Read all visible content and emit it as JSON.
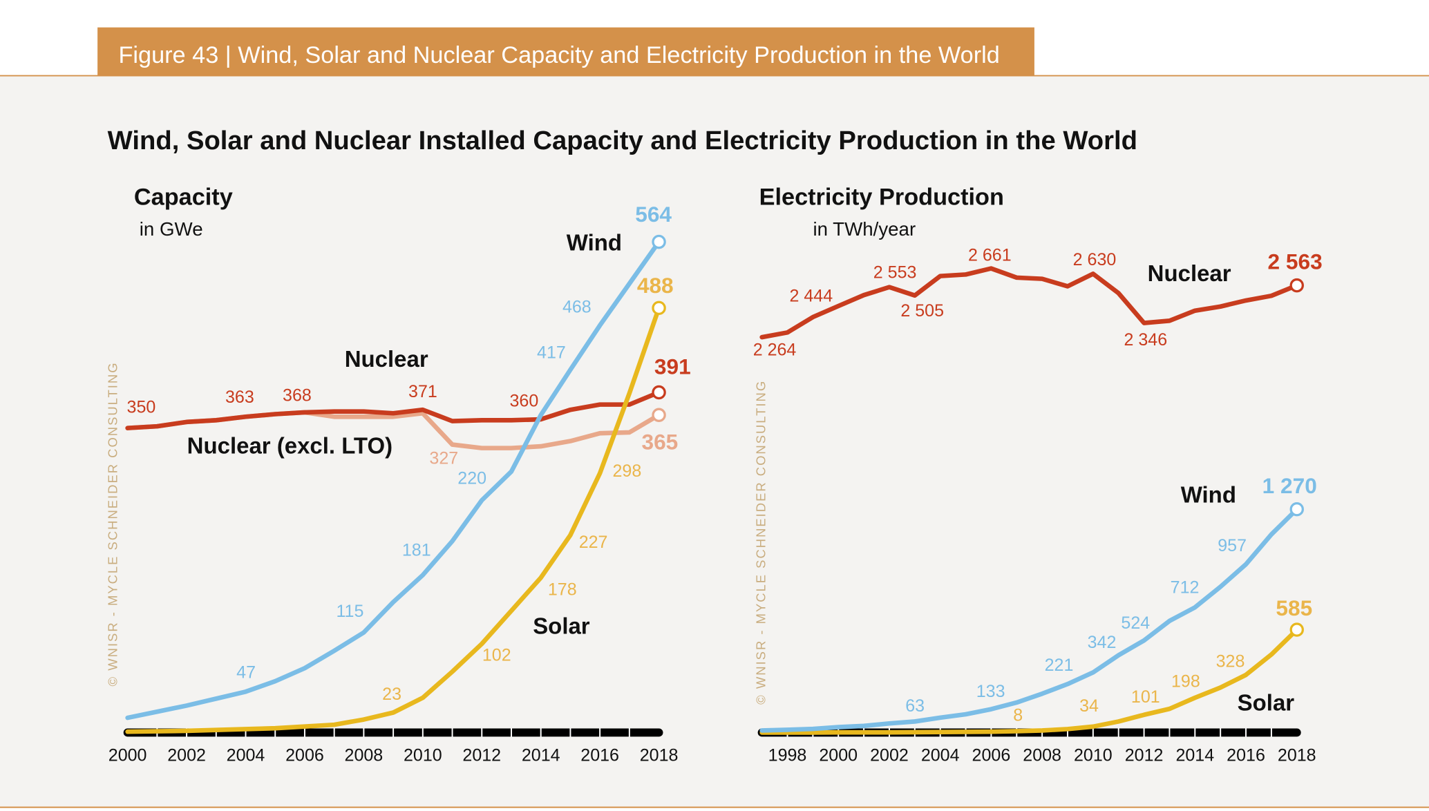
{
  "header": {
    "figure_label": "Figure 43 | Wind, Solar and Nuclear Capacity and Electricity Production in the World",
    "title": "Wind, Solar and Nuclear Installed Capacity and Electricity Production in the World",
    "watermark": "© WNISR - MYCLE SCHNEIDER CONSULTING"
  },
  "colors": {
    "header_band": "#d4914a",
    "background": "#f4f3f1",
    "wind": "#7bbde6",
    "solar": "#e8b81e",
    "solar_label": "#eab54a",
    "nuclear": "#c83c1e",
    "nuclear_excl_lto": "#e8a88a",
    "watermark": "#c9ad7f"
  },
  "chart_data": [
    {
      "type": "line",
      "title": "Capacity",
      "ylabel": "in GWe",
      "x": [
        2000,
        2001,
        2002,
        2003,
        2004,
        2005,
        2006,
        2007,
        2008,
        2009,
        2010,
        2011,
        2012,
        2013,
        2014,
        2015,
        2016,
        2017,
        2018
      ],
      "xticks": [
        "2000",
        "2002",
        "2004",
        "2006",
        "2008",
        "2010",
        "2012",
        "2014",
        "2016",
        "2018"
      ],
      "series": [
        {
          "key": "nuclear",
          "name": "Nuclear",
          "values": [
            350,
            352,
            357,
            359,
            363,
            366,
            368,
            369,
            369,
            367,
            371,
            358,
            359,
            359,
            360,
            371,
            377,
            377,
            391
          ],
          "labels": [
            {
              "year": 2000,
              "text": "350"
            },
            {
              "year": 2004,
              "text": "363"
            },
            {
              "year": 2006,
              "text": "368"
            },
            {
              "year": 2010,
              "text": "371"
            },
            {
              "year": 2014,
              "text": "360"
            },
            {
              "year": 2018,
              "text": "391"
            }
          ]
        },
        {
          "key": "nuclear_excl_lto",
          "name": "Nuclear (excl. LTO)",
          "values": [
            350,
            352,
            357,
            359,
            363,
            366,
            368,
            363,
            363,
            363,
            367,
            331,
            327,
            327,
            329,
            335,
            344,
            345,
            365
          ],
          "labels": [
            {
              "year": 2012,
              "text": "327"
            },
            {
              "year": 2018,
              "text": "365"
            }
          ]
        },
        {
          "key": "wind",
          "name": "Wind",
          "values": [
            17,
            24,
            31,
            39,
            47,
            59,
            74,
            94,
            115,
            150,
            181,
            220,
            267,
            300,
            365,
            417,
            468,
            516,
            564
          ],
          "labels": [
            {
              "year": 2004,
              "text": "47"
            },
            {
              "year": 2008,
              "text": "115"
            },
            {
              "year": 2010,
              "text": "181"
            },
            {
              "year": 2011,
              "text": "220"
            },
            {
              "year": 2015,
              "text": "417"
            },
            {
              "year": 2016,
              "text": "468"
            },
            {
              "year": 2018,
              "text": "564"
            }
          ]
        },
        {
          "key": "solar",
          "name": "Solar",
          "values": [
            1,
            1.5,
            2,
            3,
            4,
            5,
            7,
            9,
            15,
            23,
            40,
            70,
            102,
            140,
            178,
            227,
            298,
            390,
            488
          ],
          "labels": [
            {
              "year": 2009,
              "text": "23"
            },
            {
              "year": 2012,
              "text": "102"
            },
            {
              "year": 2014,
              "text": "178"
            },
            {
              "year": 2015,
              "text": "227"
            },
            {
              "year": 2016,
              "text": "298"
            },
            {
              "year": 2018,
              "text": "488"
            }
          ]
        }
      ]
    },
    {
      "type": "line",
      "title": "Electricity Production",
      "ylabel": "in TWh/year",
      "x": [
        1997,
        1998,
        1999,
        2000,
        2001,
        2002,
        2003,
        2004,
        2005,
        2006,
        2007,
        2008,
        2009,
        2010,
        2011,
        2012,
        2013,
        2014,
        2015,
        2016,
        2017,
        2018
      ],
      "xticks": [
        "1998",
        "2000",
        "2002",
        "2004",
        "2006",
        "2008",
        "2010",
        "2012",
        "2014",
        "2016",
        "2018"
      ],
      "series": [
        {
          "key": "nuclear",
          "name": "Nuclear",
          "values": [
            2264,
            2291,
            2380,
            2444,
            2507,
            2553,
            2505,
            2617,
            2626,
            2661,
            2608,
            2601,
            2558,
            2630,
            2518,
            2346,
            2359,
            2417,
            2441,
            2476,
            2503,
            2563
          ],
          "labels": [
            {
              "year": 1997,
              "text": "2 264"
            },
            {
              "year": 2000,
              "text": "2 444"
            },
            {
              "year": 2002,
              "text": "2 553"
            },
            {
              "year": 2003,
              "text": "2 505"
            },
            {
              "year": 2006,
              "text": "2 661"
            },
            {
              "year": 2010,
              "text": "2 630"
            },
            {
              "year": 2012,
              "text": "2 346"
            },
            {
              "year": 2018,
              "text": "2 563"
            }
          ]
        },
        {
          "key": "wind",
          "name": "Wind",
          "values": [
            12,
            16,
            21,
            31,
            38,
            52,
            63,
            85,
            104,
            133,
            171,
            221,
            276,
            342,
            440,
            524,
            635,
            712,
            829,
            957,
            1127,
            1270
          ],
          "labels": [
            {
              "year": 2003,
              "text": "63"
            },
            {
              "year": 2006,
              "text": "133"
            },
            {
              "year": 2008,
              "text": "221"
            },
            {
              "year": 2010,
              "text": "342"
            },
            {
              "year": 2012,
              "text": "524"
            },
            {
              "year": 2014,
              "text": "712"
            },
            {
              "year": 2016,
              "text": "957"
            },
            {
              "year": 2018,
              "text": "1 270"
            }
          ]
        },
        {
          "key": "solar",
          "name": "Solar",
          "values": [
            0,
            0,
            0,
            1,
            1,
            1,
            2,
            3,
            4,
            5,
            8,
            12,
            20,
            34,
            63,
            101,
            135,
            198,
            256,
            328,
            444,
            585
          ],
          "labels": [
            {
              "year": 2007,
              "text": "8"
            },
            {
              "year": 2010,
              "text": "34"
            },
            {
              "year": 2012,
              "text": "101"
            },
            {
              "year": 2014,
              "text": "198"
            },
            {
              "year": 2016,
              "text": "328"
            },
            {
              "year": 2018,
              "text": "585"
            }
          ]
        }
      ]
    }
  ]
}
